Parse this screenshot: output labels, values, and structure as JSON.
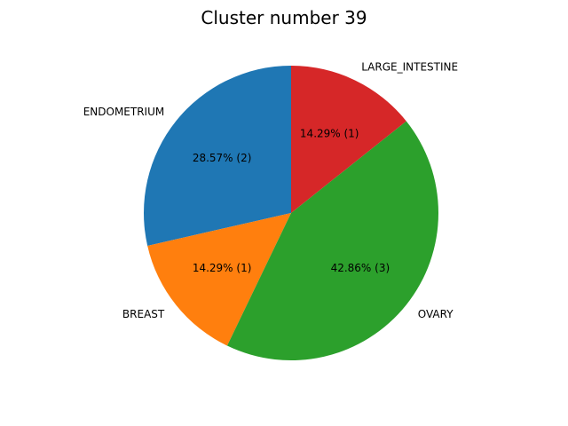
{
  "chart_data": {
    "type": "pie",
    "title": "Cluster number 39",
    "start_angle_deg": 90,
    "direction": "counterclockwise",
    "slices": [
      {
        "label": "ENDOMETRIUM",
        "value": 2,
        "percent_label": "28.57%  (2)",
        "color": "#1f77b4"
      },
      {
        "label": "BREAST",
        "value": 1,
        "percent_label": "14.29%  (1)",
        "color": "#ff7f0e"
      },
      {
        "label": "OVARY",
        "value": 3,
        "percent_label": "42.86%  (3)",
        "color": "#2ca02c"
      },
      {
        "label": "LARGE_INTESTINE",
        "value": 1,
        "percent_label": "14.29%  (1)",
        "color": "#d62728"
      }
    ]
  }
}
